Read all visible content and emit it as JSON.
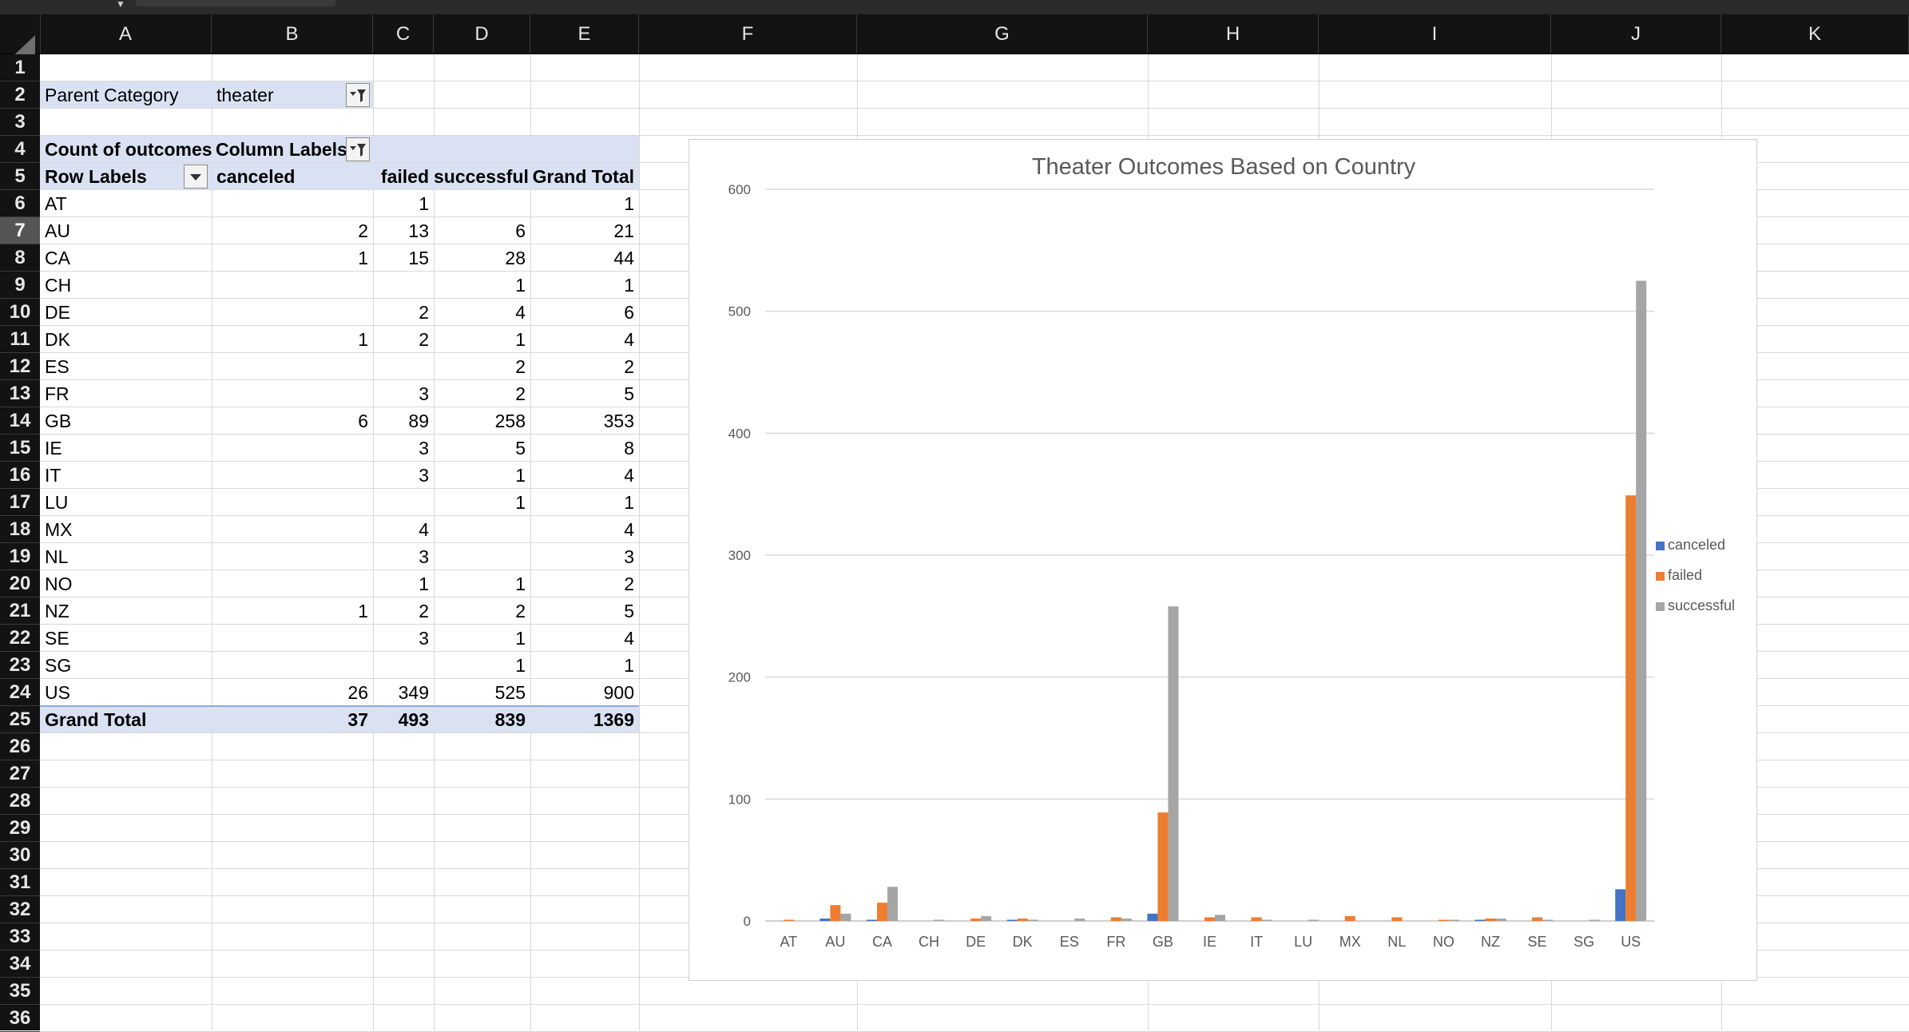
{
  "columns": [
    "A",
    "B",
    "C",
    "D",
    "E",
    "F",
    "G",
    "H",
    "I",
    "J",
    "K"
  ],
  "rows": [
    "1",
    "2",
    "3",
    "4",
    "5",
    "6",
    "7",
    "8",
    "9",
    "10",
    "11",
    "12",
    "13",
    "14",
    "15",
    "16",
    "17",
    "18",
    "19",
    "20",
    "21",
    "22",
    "23",
    "24",
    "25",
    "26",
    "27",
    "28",
    "29",
    "30",
    "31",
    "32",
    "33",
    "34",
    "35",
    "36"
  ],
  "selected_row": "7",
  "filter": {
    "label": "Parent Category",
    "value": "theater"
  },
  "pivot": {
    "corner_label": "Count of outcomes",
    "column_labels": "Column Labels",
    "row_labels": "Row Labels",
    "headers": [
      "canceled",
      "failed",
      "successful",
      "Grand Total"
    ],
    "records": [
      {
        "label": "AT",
        "vals": [
          "",
          "1",
          "",
          "1"
        ]
      },
      {
        "label": "AU",
        "vals": [
          "2",
          "13",
          "6",
          "21"
        ]
      },
      {
        "label": "CA",
        "vals": [
          "1",
          "15",
          "28",
          "44"
        ]
      },
      {
        "label": "CH",
        "vals": [
          "",
          "",
          "1",
          "1"
        ]
      },
      {
        "label": "DE",
        "vals": [
          "",
          "2",
          "4",
          "6"
        ]
      },
      {
        "label": "DK",
        "vals": [
          "1",
          "2",
          "1",
          "4"
        ]
      },
      {
        "label": "ES",
        "vals": [
          "",
          "",
          "2",
          "2"
        ]
      },
      {
        "label": "FR",
        "vals": [
          "",
          "3",
          "2",
          "5"
        ]
      },
      {
        "label": "GB",
        "vals": [
          "6",
          "89",
          "258",
          "353"
        ]
      },
      {
        "label": "IE",
        "vals": [
          "",
          "3",
          "5",
          "8"
        ]
      },
      {
        "label": "IT",
        "vals": [
          "",
          "3",
          "1",
          "4"
        ]
      },
      {
        "label": "LU",
        "vals": [
          "",
          "",
          "1",
          "1"
        ]
      },
      {
        "label": "MX",
        "vals": [
          "",
          "4",
          "",
          "4"
        ]
      },
      {
        "label": "NL",
        "vals": [
          "",
          "3",
          "",
          "3"
        ]
      },
      {
        "label": "NO",
        "vals": [
          "",
          "1",
          "1",
          "2"
        ]
      },
      {
        "label": "NZ",
        "vals": [
          "1",
          "2",
          "2",
          "5"
        ]
      },
      {
        "label": "SE",
        "vals": [
          "",
          "3",
          "1",
          "4"
        ]
      },
      {
        "label": "SG",
        "vals": [
          "",
          "",
          "1",
          "1"
        ]
      },
      {
        "label": "US",
        "vals": [
          "26",
          "349",
          "525",
          "900"
        ]
      }
    ],
    "total": {
      "label": "Grand Total",
      "vals": [
        "37",
        "493",
        "839",
        "1369"
      ]
    }
  },
  "colors": {
    "canceled": "#4472c4",
    "failed": "#ed7d31",
    "successful": "#a5a5a5",
    "band": "#d9e1f2"
  },
  "chart_data": {
    "type": "bar",
    "title": "Theater Outcomes Based on Country",
    "categories": [
      "AT",
      "AU",
      "CA",
      "CH",
      "DE",
      "DK",
      "ES",
      "FR",
      "GB",
      "IE",
      "IT",
      "LU",
      "MX",
      "NL",
      "NO",
      "NZ",
      "SE",
      "SG",
      "US"
    ],
    "series": [
      {
        "name": "canceled",
        "values": [
          0,
          2,
          1,
          0,
          0,
          1,
          0,
          0,
          6,
          0,
          0,
          0,
          0,
          0,
          0,
          1,
          0,
          0,
          26
        ]
      },
      {
        "name": "failed",
        "values": [
          1,
          13,
          15,
          0,
          2,
          2,
          0,
          3,
          89,
          3,
          3,
          0,
          4,
          3,
          1,
          2,
          3,
          0,
          349
        ]
      },
      {
        "name": "successful",
        "values": [
          0,
          6,
          28,
          1,
          4,
          1,
          2,
          2,
          258,
          5,
          1,
          1,
          0,
          0,
          1,
          2,
          1,
          1,
          525
        ]
      }
    ],
    "yticks": [
      "0",
      "100",
      "200",
      "300",
      "400",
      "500",
      "600"
    ],
    "ylim": [
      0,
      600
    ],
    "grid": true,
    "legend": "right"
  }
}
